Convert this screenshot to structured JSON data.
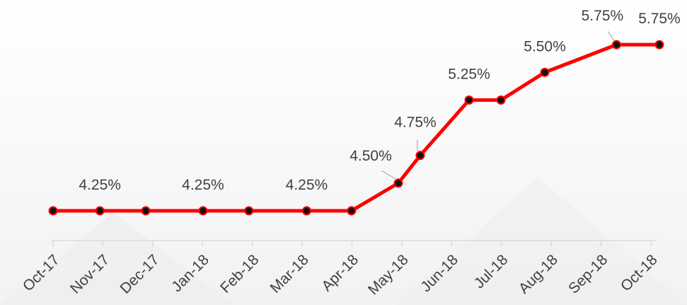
{
  "chart_data": {
    "type": "line",
    "x": [
      0,
      0.94,
      1.86,
      3.01,
      3.93,
      5.09,
      5.99,
      6.93,
      7.37,
      8.35,
      8.99,
      9.87,
      11.31,
      12.17
    ],
    "series": [
      {
        "color": "#ff0000",
        "values": [
          4.25,
          4.25,
          4.25,
          4.25,
          4.25,
          4.25,
          4.25,
          4.5,
          4.75,
          5.25,
          5.25,
          5.5,
          5.75,
          5.75
        ],
        "value_labels": [
          null,
          "4.25%",
          null,
          "4.25%",
          null,
          "4.25%",
          null,
          "4.50%",
          "4.75%",
          "5.25%",
          null,
          "5.50%",
          "5.75%",
          "5.75%"
        ]
      }
    ],
    "xlim": [
      0,
      12
    ],
    "xticks": [
      {
        "value": 0,
        "label": "Oct-17"
      },
      {
        "value": 1,
        "label": "Nov-17"
      },
      {
        "value": 2,
        "label": "Dec-17"
      },
      {
        "value": 3,
        "label": "Jan-18"
      },
      {
        "value": 4,
        "label": "Feb-18"
      },
      {
        "value": 5,
        "label": "Mar-18"
      },
      {
        "value": 6,
        "label": "Apr-18"
      },
      {
        "value": 7,
        "label": "May-18"
      },
      {
        "value": 8,
        "label": "Jun-18"
      },
      {
        "value": 9,
        "label": "Jul-18"
      },
      {
        "value": 10,
        "label": "Aug-18"
      },
      {
        "value": 11,
        "label": "Sep-18"
      },
      {
        "value": 12,
        "label": "Oct-18"
      }
    ],
    "ylim": [
      4,
      6
    ]
  }
}
